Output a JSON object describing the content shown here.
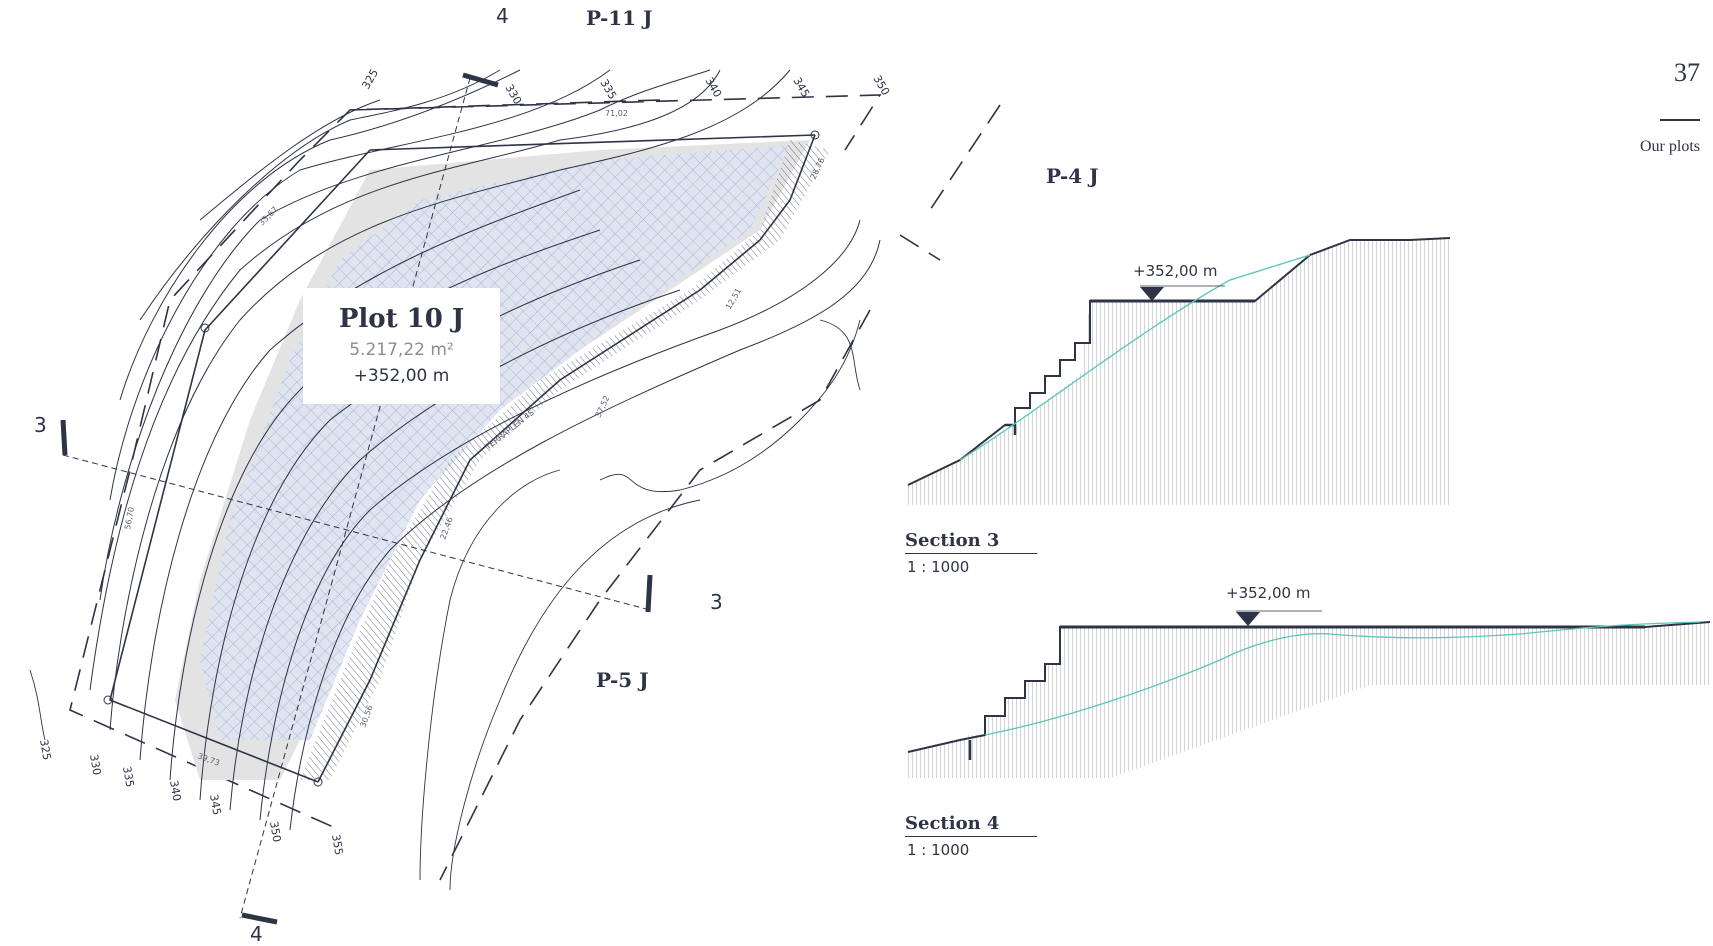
{
  "page": {
    "number": "37",
    "section": "Our plots"
  },
  "plot": {
    "title": "Plot 10 J",
    "area": "5.217,22 m²",
    "level": "+352,00 m"
  },
  "neighbors": {
    "north": "P-11 J",
    "east": "P-4 J",
    "south": "P-5 J"
  },
  "cut_lines": {
    "a_top": "4",
    "a_bottom": "4",
    "b_left": "3",
    "b_right": "3"
  },
  "contours": [
    "325",
    "330",
    "335",
    "340",
    "345",
    "350",
    "355",
    "325",
    "330",
    "335",
    "340",
    "345",
    "350"
  ],
  "dimensions": [
    "71,02",
    "35,67",
    "56,70",
    "39,73",
    "28,76",
    "12,51",
    "37,52",
    "22,46",
    "30,56"
  ],
  "terrace_label": "TERRAPLEN 4S",
  "sections": [
    {
      "title": "Section 3",
      "scale": "1 : 1000",
      "level": "+352,00 m"
    },
    {
      "title": "Section 4",
      "scale": "1 : 1000",
      "level": "+352,00 m"
    }
  ],
  "colors": {
    "ink": "#2e3346",
    "hatch_blue": "#8fa3d4",
    "terrain_line": "#5ec7b8",
    "fill_gray": "#e3e3e3"
  }
}
